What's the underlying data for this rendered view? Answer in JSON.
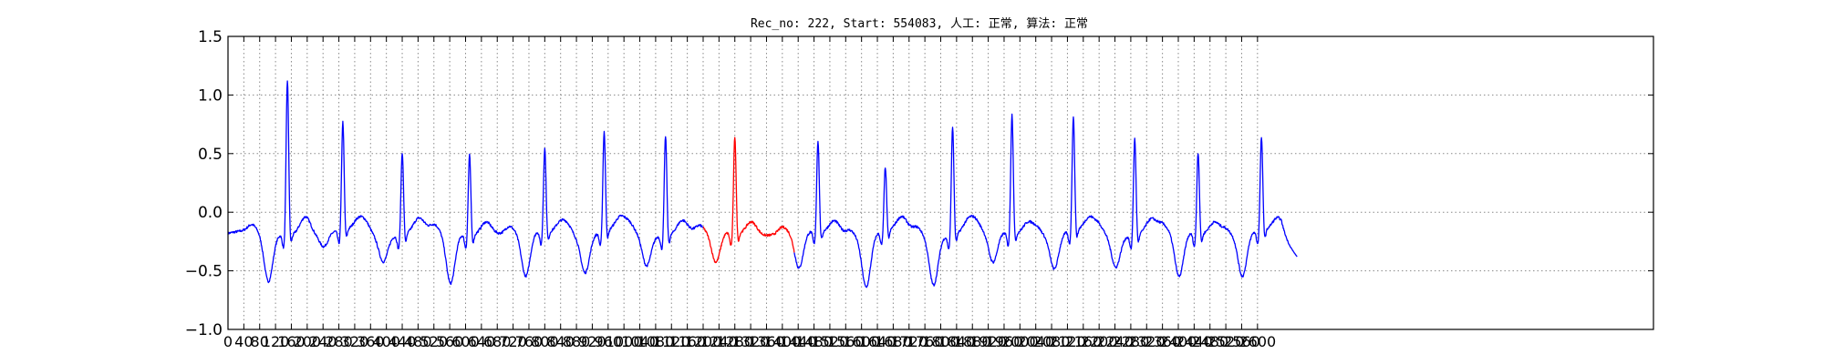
{
  "chart_data": {
    "type": "line",
    "title": "Rec_no: 222, Start: 554083, 人工: 正常, 算法: 正常",
    "xlabel": "",
    "ylabel": "",
    "xlim": [
      0,
      3600
    ],
    "ylim": [
      -1.0,
      1.5
    ],
    "grid": true,
    "sample_count": 2700,
    "y_ticks": [
      -1.0,
      -0.5,
      0.0,
      0.5,
      1.0,
      1.5
    ],
    "y_tick_labels": [
      "−1.0",
      "−0.5",
      "0.0",
      "0.5",
      "1.0",
      "1.5"
    ],
    "x_ticks": [
      0,
      40,
      80,
      120,
      160,
      200,
      240,
      280,
      320,
      360,
      400,
      440,
      480,
      520,
      560,
      600,
      640,
      680,
      720,
      760,
      800,
      840,
      880,
      920,
      960,
      1000,
      1040,
      1080,
      1120,
      1160,
      1200,
      1240,
      1280,
      1320,
      1360,
      1400,
      1440,
      1480,
      1520,
      1560,
      1600,
      1640,
      1680,
      1720,
      1760,
      1800,
      1840,
      1880,
      1920,
      1960,
      2000,
      2040,
      2080,
      2120,
      2160,
      2200,
      2240,
      2280,
      2320,
      2360,
      2400,
      2440,
      2480,
      2520,
      2560,
      2600
    ],
    "x_tick_labels": [
      "0",
      "40",
      "80",
      "120",
      "160",
      "200",
      "240",
      "280",
      "320",
      "360",
      "400",
      "440",
      "480",
      "520",
      "560",
      "600",
      "640",
      "680",
      "720",
      "760",
      "800",
      "840",
      "880",
      "920",
      "960",
      "1000",
      "1040",
      "1080",
      "1120",
      "1160",
      "1200",
      "1240",
      "1280",
      "1320",
      "1360",
      "1400",
      "1440",
      "1480",
      "1520",
      "1560",
      "1600",
      "1640",
      "1680",
      "1720",
      "1760",
      "1800",
      "1840",
      "1880",
      "1920",
      "1960",
      "2000",
      "2040",
      "2080",
      "2120",
      "2160",
      "2200",
      "2240",
      "2280",
      "2320",
      "2360",
      "2400",
      "2440",
      "2480",
      "2520",
      "2560",
      "2600"
    ],
    "baseline": -0.18,
    "beats": [
      {
        "x": 150,
        "peak": 1.15,
        "trough": -0.6
      },
      {
        "x": 290,
        "peak": 0.75,
        "trough": -0.3
      },
      {
        "x": 440,
        "peak": 0.53,
        "trough": -0.4
      },
      {
        "x": 610,
        "peak": 0.51,
        "trough": -0.62
      },
      {
        "x": 800,
        "peak": 0.54,
        "trough": -0.57
      },
      {
        "x": 950,
        "peak": 0.68,
        "trough": -0.5
      },
      {
        "x": 1105,
        "peak": 0.68,
        "trough": -0.45
      },
      {
        "x": 1280,
        "peak": 0.65,
        "trough": -0.45
      },
      {
        "x": 1490,
        "peak": 0.6,
        "trough": -0.5
      },
      {
        "x": 1660,
        "peak": 0.37,
        "trough": -0.63
      },
      {
        "x": 1830,
        "peak": 0.75,
        "trough": -0.6
      },
      {
        "x": 1980,
        "peak": 0.84,
        "trough": -0.45
      },
      {
        "x": 2135,
        "peak": 0.8,
        "trough": -0.48
      },
      {
        "x": 2290,
        "peak": 0.65,
        "trough": -0.45
      },
      {
        "x": 2450,
        "peak": 0.52,
        "trough": -0.57
      },
      {
        "x": 2610,
        "peak": 0.62,
        "trough": -0.55
      }
    ],
    "end_value": -0.38,
    "series": [
      {
        "color": "#0000ff",
        "ranges": [
          [
            0,
            1200
          ],
          [
            1430,
            2700
          ]
        ]
      },
      {
        "color": "#ff0000",
        "ranges": [
          [
            1200,
            1430
          ]
        ]
      }
    ]
  }
}
